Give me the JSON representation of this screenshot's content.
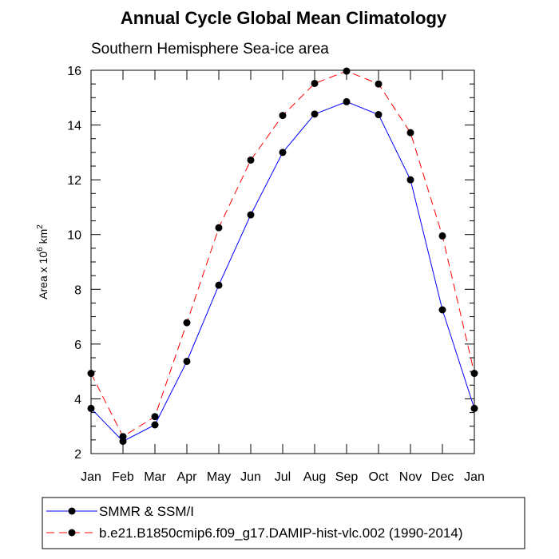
{
  "chart_data": {
    "type": "line",
    "title": "Annual Cycle Global Mean Climatology",
    "subtitle": "Southern Hemisphere Sea-ice area",
    "ylabel_parts": [
      "Area x 10",
      "6",
      " km",
      "2"
    ],
    "ylim": [
      2,
      16
    ],
    "yticks": [
      "2",
      "4",
      "6",
      "8",
      "10",
      "12",
      "14",
      "16"
    ],
    "categories": [
      "Jan",
      "Feb",
      "Mar",
      "Apr",
      "May",
      "Jun",
      "Jul",
      "Aug",
      "Sep",
      "Oct",
      "Nov",
      "Dec",
      "Jan"
    ],
    "grid": false,
    "legend_position": "bottom",
    "series": [
      {
        "name": "SMMR & SSM/I",
        "color": "#0000ff",
        "line_style": "solid",
        "values": [
          3.65,
          2.45,
          3.05,
          5.37,
          8.15,
          10.72,
          13.0,
          14.4,
          14.85,
          14.38,
          12.0,
          7.25,
          3.65
        ]
      },
      {
        "name": "b.e21.B1850cmip6.f09_g17.DAMIP-hist-vlc.002 (1990-2014)",
        "color": "#ff0000",
        "line_style": "dashed",
        "values": [
          4.93,
          2.62,
          3.35,
          6.78,
          10.25,
          12.72,
          14.35,
          15.52,
          15.97,
          15.5,
          13.72,
          9.95,
          4.93
        ]
      }
    ]
  }
}
